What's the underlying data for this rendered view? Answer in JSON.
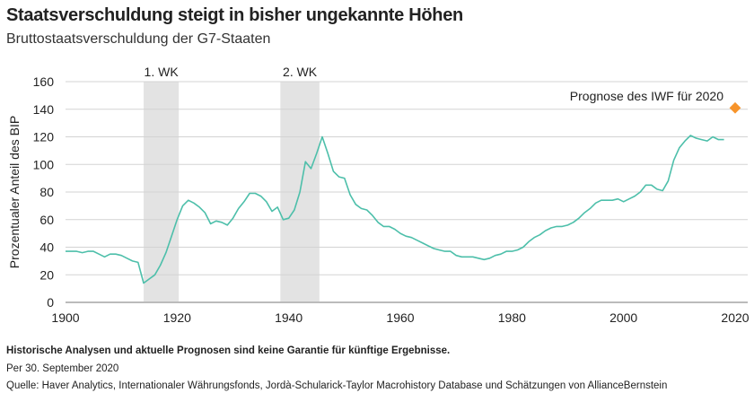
{
  "header": {
    "title": "Staatsverschuldung steigt in bisher ungekannte Höhen",
    "subtitle": "Bruttostaatsverschuldung der G7-Staaten"
  },
  "footer": {
    "disclaimer": "Historische Analysen und aktuelle Prognosen sind keine Garantie für künftige Ergebnisse.",
    "date": "Per 30. September 2020",
    "source": "Quelle: Haver Analytics, Internationaler Währungsfonds, Jordà-Schularick-Taylor Macrohistory Database und Schätzungen von AllianceBernstein"
  },
  "chart_data": {
    "type": "line",
    "title": "Staatsverschuldung steigt in bisher ungekannte Höhen",
    "xlabel": "",
    "ylabel": "Prozentualer Anteil des BIP",
    "xlim": [
      1900,
      2020
    ],
    "ylim": [
      0,
      160
    ],
    "xticks": [
      1900,
      1920,
      1940,
      1960,
      1980,
      2000,
      2020
    ],
    "yticks": [
      0,
      20,
      40,
      60,
      80,
      100,
      120,
      140,
      160
    ],
    "grid": true,
    "line_color": "#4dbfaa",
    "forecast_color": "#f7942b",
    "shade_color": "#e3e3e3",
    "shaded": [
      {
        "label": "1. WK",
        "range": [
          1914,
          1920.3
        ]
      },
      {
        "label": "2. WK",
        "range": [
          1938.5,
          1945.5
        ]
      }
    ],
    "series": [
      {
        "name": "Bruttostaatsverschuldung G7",
        "x": [
          1900,
          1901,
          1902,
          1903,
          1904,
          1905,
          1906,
          1907,
          1908,
          1909,
          1910,
          1911,
          1912,
          1913,
          1914,
          1915,
          1916,
          1917,
          1918,
          1919,
          1920,
          1921,
          1922,
          1923,
          1924,
          1925,
          1926,
          1927,
          1928,
          1929,
          1930,
          1931,
          1932,
          1933,
          1934,
          1935,
          1936,
          1937,
          1938,
          1939,
          1940,
          1941,
          1942,
          1943,
          1944,
          1945,
          1946,
          1947,
          1948,
          1949,
          1950,
          1951,
          1952,
          1953,
          1954,
          1955,
          1956,
          1957,
          1958,
          1959,
          1960,
          1961,
          1962,
          1963,
          1964,
          1965,
          1966,
          1967,
          1968,
          1969,
          1970,
          1971,
          1972,
          1973,
          1974,
          1975,
          1976,
          1977,
          1978,
          1979,
          1980,
          1981,
          1982,
          1983,
          1984,
          1985,
          1986,
          1987,
          1988,
          1989,
          1990,
          1991,
          1992,
          1993,
          1994,
          1995,
          1996,
          1997,
          1998,
          1999,
          2000,
          2001,
          2002,
          2003,
          2004,
          2005,
          2006,
          2007,
          2008,
          2009,
          2010,
          2011,
          2012,
          2013,
          2014,
          2015,
          2016,
          2017,
          2018
        ],
        "values": [
          37,
          37,
          37,
          36,
          37,
          37,
          35,
          33,
          35,
          35,
          34,
          32,
          30,
          29,
          14,
          17,
          20,
          27,
          36,
          48,
          60,
          70,
          74,
          72,
          69,
          65,
          57,
          59,
          58,
          56,
          61,
          68,
          73,
          79,
          79,
          77,
          73,
          66,
          69,
          60,
          61,
          67,
          80,
          102,
          97,
          108,
          120,
          108,
          95,
          91,
          90,
          78,
          71,
          68,
          67,
          63,
          58,
          55,
          55,
          53,
          50,
          48,
          47,
          45,
          43,
          41,
          39,
          38,
          37,
          37,
          34,
          33,
          33,
          33,
          32,
          31,
          32,
          34,
          35,
          37,
          37,
          38,
          40,
          44,
          47,
          49,
          52,
          54,
          55,
          55,
          56,
          58,
          61,
          65,
          68,
          72,
          74,
          74,
          74,
          75,
          73,
          75,
          77,
          80,
          85,
          85,
          82,
          81,
          88,
          103,
          112,
          117,
          121,
          119,
          118,
          117,
          120,
          118,
          118
        ]
      }
    ],
    "forecast": {
      "label": "Prognose des IWF für 2020",
      "x": 2020,
      "value": 141
    }
  }
}
